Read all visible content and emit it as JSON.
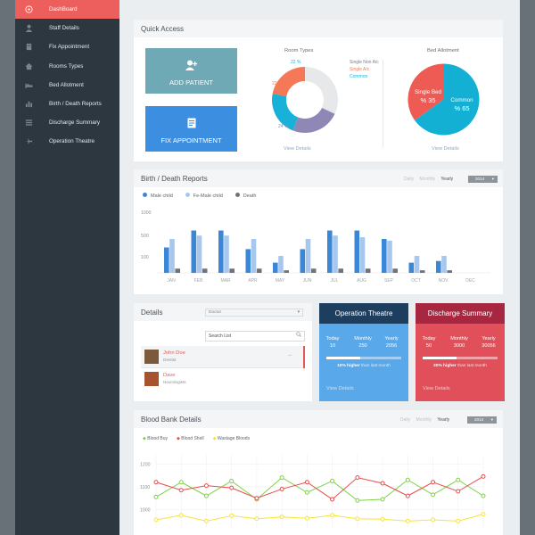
{
  "sidebar": {
    "items": [
      {
        "label": "DashBoard",
        "icon": "dashboard-icon"
      },
      {
        "label": "Staff Details",
        "icon": "user-icon"
      },
      {
        "label": "Fix Appointment",
        "icon": "book-icon"
      },
      {
        "label": "Rooms Types",
        "icon": "home-icon"
      },
      {
        "label": "Bed Allotment",
        "icon": "bed-icon"
      },
      {
        "label": "Birth / Death Reports",
        "icon": "chart-icon"
      },
      {
        "label": "Discharge Summary",
        "icon": "list-icon"
      },
      {
        "label": "Operation Theatre",
        "icon": "plane-icon"
      }
    ]
  },
  "quick_access": {
    "title": "Quick Access",
    "add_patient": "ADD PATIENT",
    "fix_appointment": "FIX APPOINTMENT",
    "room_types": {
      "title": "Room Types",
      "legend": [
        "Single Non A/c",
        "Single A/c",
        "Common"
      ],
      "labels": [
        "22 %",
        "22 %",
        "24 %"
      ],
      "view": "View Details"
    },
    "bed_allotment": {
      "title": "Bed Allotment",
      "single_label": "Single Bed",
      "single_value": "% 35",
      "common_label": "Common",
      "common_value": "% 65",
      "view": "View Details"
    }
  },
  "birth_death": {
    "title": "Birth / Death Reports",
    "tabs": [
      "Daily",
      "Monthly",
      "Yearly"
    ],
    "year": "2014",
    "legend": [
      "Male child",
      "Fe-Male child",
      "Death"
    ]
  },
  "details": {
    "title": "Details",
    "filter": "Doctor",
    "search_placeholder": "Search List",
    "people": [
      {
        "name": "John Doe",
        "role": "Dentist"
      },
      {
        "name": "Dave",
        "role": "Neurologists"
      }
    ]
  },
  "operation_theatre": {
    "title": "Operation Theatre",
    "stats": [
      {
        "label": "Today",
        "value": "10"
      },
      {
        "label": "Monthly",
        "value": "250"
      },
      {
        "label": "Yearly",
        "value": "2056"
      }
    ],
    "progress": 0.45,
    "note_strong": "10% higher",
    "note_rest": "than last month",
    "view": "View Details"
  },
  "discharge_summary": {
    "title": "Discharge Summary",
    "stats": [
      {
        "label": "Today",
        "value": "50"
      },
      {
        "label": "Monthly",
        "value": "3000"
      },
      {
        "label": "Yearly",
        "value": "30056"
      }
    ],
    "progress": 0.45,
    "note_strong": "20% higher",
    "note_rest": "than last month",
    "view": "View Details"
  },
  "blood_bank": {
    "title": "Blood Bank Details",
    "tabs": [
      "Daily",
      "Monthly",
      "Yearly"
    ],
    "year": "2014",
    "legend": [
      "Blood Buy",
      "Blood Shell",
      "Wastage Bloods"
    ]
  },
  "chart_data": [
    {
      "type": "pie",
      "title": "Room Types",
      "categories": [
        "Single Non A/c",
        "Single A/c",
        "Common"
      ],
      "values": [
        22,
        22,
        24
      ],
      "colors": [
        "#19b1d9",
        "#f57956",
        "#8f88b6"
      ],
      "remainder_color": "#e6e8ea"
    },
    {
      "type": "pie",
      "title": "Bed Allotment",
      "categories": [
        "Single Bed",
        "Common"
      ],
      "values": [
        35,
        65
      ],
      "colors": [
        "#ee5a54",
        "#14b0d3"
      ]
    },
    {
      "type": "bar",
      "title": "Birth / Death Reports",
      "categories": [
        "JAN",
        "FEB",
        "MAR",
        "APR",
        "MAY",
        "JUN",
        "JUL",
        "AUG",
        "SEP",
        "OCT",
        "NOV",
        "DEC"
      ],
      "yticks": [
        "1000",
        "500",
        "100"
      ],
      "series": [
        {
          "name": "Male child",
          "color": "#3a87d8",
          "values": [
            30,
            50,
            50,
            28,
            12,
            28,
            50,
            50,
            40,
            12,
            14,
            0
          ]
        },
        {
          "name": "Fe-Male child",
          "color": "#a8c7ee",
          "values": [
            40,
            44,
            44,
            40,
            20,
            40,
            44,
            42,
            38,
            20,
            20,
            0
          ]
        },
        {
          "name": "Death",
          "color": "#6e7479",
          "values": [
            5,
            5,
            5,
            5,
            3,
            5,
            5,
            5,
            5,
            3,
            3,
            0
          ]
        }
      ]
    },
    {
      "type": "line",
      "title": "Blood Bank Details",
      "yticks": [
        "1200",
        "1100",
        "1000"
      ],
      "ylim": [
        920,
        1240
      ],
      "series": [
        {
          "name": "Blood Buy",
          "color": "#7ed348",
          "values": [
            1055,
            1120,
            1060,
            1125,
            1045,
            1140,
            1075,
            1125,
            1040,
            1045,
            1130,
            1065,
            1130,
            1060
          ]
        },
        {
          "name": "Blood Shell",
          "color": "#e84c4c",
          "values": [
            1120,
            1085,
            1105,
            1095,
            1050,
            1090,
            1120,
            1045,
            1140,
            1115,
            1060,
            1120,
            1080,
            1145
          ]
        },
        {
          "name": "Wastage Bloods",
          "color": "#f6e43a",
          "values": [
            955,
            975,
            950,
            973,
            960,
            968,
            962,
            975,
            960,
            958,
            950,
            955,
            950,
            980
          ]
        }
      ]
    }
  ]
}
